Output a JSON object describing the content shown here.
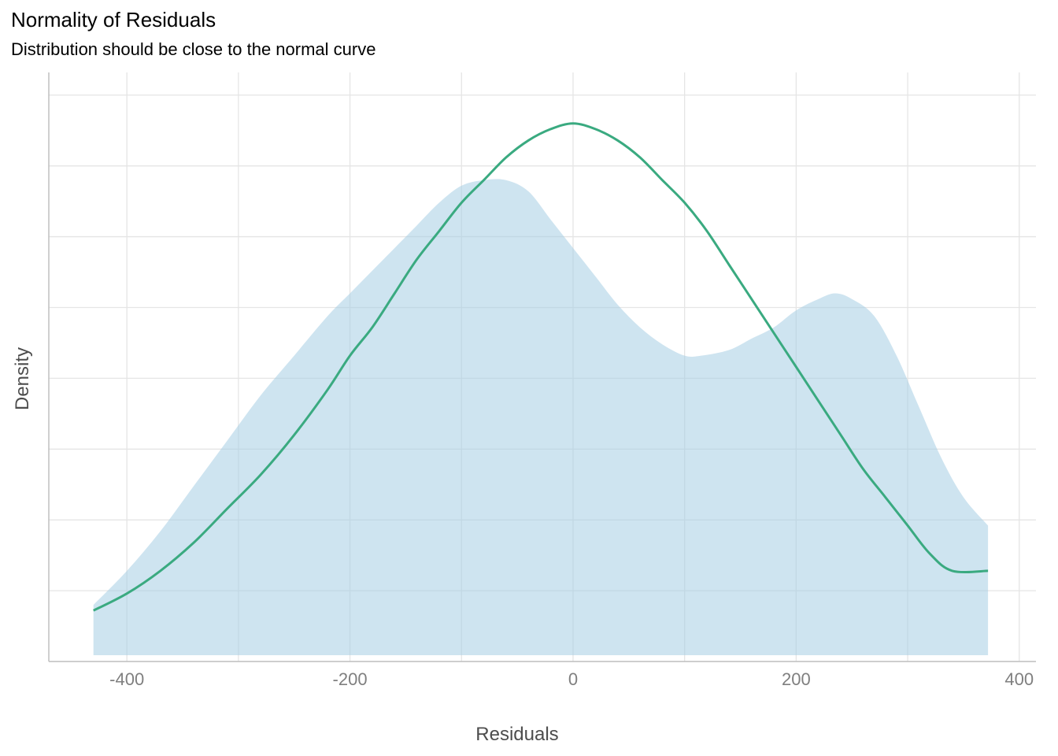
{
  "chart_data": {
    "type": "area",
    "title": "Normality of Residuals",
    "subtitle": "Distribution should be close to the normal curve",
    "xlabel": "Residuals",
    "ylabel": "Density",
    "xlim": [
      -470,
      415
    ],
    "ylim": [
      0,
      1.04
    ],
    "x_ticks": [
      -400,
      -200,
      0,
      200,
      400
    ],
    "x_tick_labels": [
      "-400",
      "-200",
      "0",
      "200",
      "400"
    ],
    "y_tick_labels_shown": false,
    "grid": true,
    "legend": "none",
    "colors": {
      "density_fill": "#a6cee3",
      "normal_curve": "#3aaa80",
      "grid": "#e5e5e5",
      "axis": "#bfbfbf"
    },
    "series": [
      {
        "kind": "area",
        "x": [
          -430,
          -400,
          -370,
          -340,
          -310,
          -280,
          -250,
          -220,
          -200,
          -180,
          -160,
          -140,
          -120,
          -100,
          -80,
          -60,
          -40,
          -20,
          0,
          20,
          40,
          60,
          80,
          100,
          115,
          140,
          160,
          180,
          200,
          220,
          235,
          250,
          270,
          290,
          310,
          330,
          350,
          372
        ],
        "y": [
          0.1,
          0.16,
          0.23,
          0.31,
          0.39,
          0.47,
          0.54,
          0.61,
          0.65,
          0.69,
          0.73,
          0.77,
          0.81,
          0.84,
          0.85,
          0.85,
          0.83,
          0.78,
          0.73,
          0.68,
          0.63,
          0.59,
          0.56,
          0.54,
          0.54,
          0.55,
          0.57,
          0.59,
          0.62,
          0.64,
          0.65,
          0.64,
          0.61,
          0.54,
          0.45,
          0.36,
          0.29,
          0.24
        ]
      },
      {
        "kind": "line",
        "x": [
          -430,
          -400,
          -370,
          -340,
          -310,
          -280,
          -250,
          -220,
          -200,
          -180,
          -160,
          -140,
          -120,
          -100,
          -80,
          -60,
          -40,
          -20,
          0,
          20,
          40,
          60,
          80,
          100,
          120,
          140,
          160,
          180,
          200,
          220,
          240,
          260,
          280,
          300,
          320,
          340,
          372
        ],
        "y": [
          0.09,
          0.12,
          0.16,
          0.21,
          0.27,
          0.33,
          0.4,
          0.48,
          0.54,
          0.59,
          0.65,
          0.71,
          0.76,
          0.81,
          0.85,
          0.89,
          0.92,
          0.94,
          0.95,
          0.94,
          0.92,
          0.89,
          0.85,
          0.81,
          0.76,
          0.7,
          0.64,
          0.58,
          0.52,
          0.46,
          0.4,
          0.34,
          0.29,
          0.24,
          0.19,
          0.16,
          0.16
        ]
      }
    ]
  }
}
